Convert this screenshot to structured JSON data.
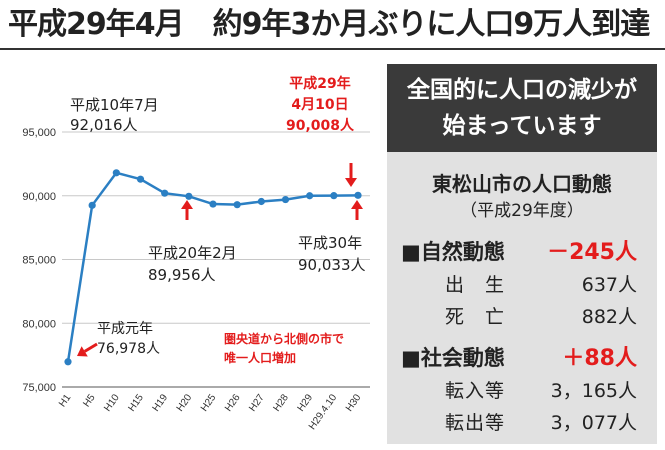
{
  "title": "平成29年4月　約9年3か月ぶりに人口9万人到達",
  "chart_data": {
    "type": "line",
    "categories": [
      "H1",
      "H5",
      "H10",
      "H15",
      "H19",
      "H20",
      "H25",
      "H26",
      "H27",
      "H28",
      "H29",
      "H29.4.10",
      "H30"
    ],
    "values": [
      76978,
      89250,
      91800,
      91300,
      90200,
      89956,
      89350,
      89300,
      89550,
      89700,
      90000,
      90008,
      90033
    ],
    "ylim": [
      75000,
      95000
    ],
    "yticks": [
      "75,000",
      "80,000",
      "85,000",
      "90,000",
      "95,000"
    ],
    "grid": true,
    "annotations": [
      {
        "lines": [
          "平成10年7月",
          "92,016人"
        ],
        "color": "#222222"
      },
      {
        "lines": [
          "平成29年",
          "4月10日",
          "90,008人"
        ],
        "color": "#e31c1c"
      },
      {
        "lines": [
          "平成20年2月",
          "89,956人"
        ],
        "color": "#222222"
      },
      {
        "lines": [
          "平成30年",
          "90,033人"
        ],
        "color": "#222222"
      },
      {
        "lines": [
          "平成元年",
          "76,978人"
        ],
        "color": "#222222"
      },
      {
        "lines": [
          "圏央道から北側の市で",
          "唯一人口増加"
        ],
        "color": "#e31c1c"
      }
    ],
    "line_color": "#2b7fc3",
    "arrow_color": "#e31c1c"
  },
  "panel": {
    "banner": [
      "全国的に人口の減少が",
      "始まっています"
    ],
    "stat_title": "東松山市の人口動態",
    "stat_sub": "（平成29年度）",
    "natural": {
      "label": "■自然動態",
      "value": "－245人",
      "rows": [
        {
          "label": "出　生",
          "value": "637人"
        },
        {
          "label": "死　亡",
          "value": "882人"
        }
      ]
    },
    "social": {
      "label": "■社会動態",
      "value": "＋88人",
      "rows": [
        {
          "label": "転入等",
          "value": "3，165人"
        },
        {
          "label": "転出等",
          "value": "3，077人"
        }
      ]
    }
  }
}
